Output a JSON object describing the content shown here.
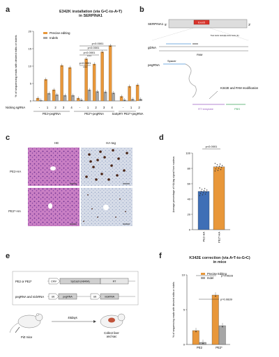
{
  "panels": {
    "a": "a",
    "b": "b",
    "c": "c",
    "d": "d",
    "e": "e",
    "f": "f"
  },
  "panel_a": {
    "title_line1": "E342K installation (via G•C-to-A•T)",
    "title_line2": "in SERPINA1",
    "nicking_label": "Nicking sgRNA",
    "nicking_values": [
      "-",
      "1",
      "2",
      "3",
      "4",
      "-",
      "1",
      "2",
      "3",
      "4",
      "-",
      "1",
      "2"
    ],
    "groups": [
      "PE2+pegRNA",
      "PE2*+pegRNA",
      "SaSpRY PE2*+pegRNA"
    ],
    "p1": "p<0.0001",
    "p2": "p<0.0001",
    "p3": "p<0.0001",
    "p4": "p<0.0001",
    "stars": "****"
  },
  "panel_b": {
    "gene": "SERPINA1",
    "exon": "Exon5",
    "five_prime": "5'",
    "three_prime": "3'",
    "mutation_label": "TGA GAG GAA(E) AAG GAG (K)",
    "gdna_label": "gDNA",
    "pegrna_label": "pegRNA",
    "spacer_label": "Spacer",
    "pam_label": "PAM",
    "rt_template_label": "RT template",
    "pbs_label": "PBS",
    "k342e_label": "K342E and PAM modification"
  },
  "panel_c": {
    "he_label": "HE",
    "ha_tag_label": "HA-tag",
    "row1_label": "PE2-HA",
    "row2_label": "PE2*-HA"
  },
  "panel_e": {
    "row1_label": "PE2 or PE2*",
    "row2_label": "pegRNA and nickRNA",
    "cmv": "CMV",
    "spcas9": "SpCas9 (H840A)",
    "rt": "RT",
    "u6a": "U6",
    "pegrna": "pegRNA",
    "u6b": "U6",
    "nickrna": "nickRNA",
    "mice_label": "PiZ mice",
    "days_label": "45days",
    "collect_label1": "Collect liver",
    "collect_label2": "and sac"
  },
  "chart_data": [
    {
      "id": "a",
      "type": "bar",
      "categories": [
        "-",
        "1",
        "2",
        "3",
        "4",
        "-",
        "1",
        "2",
        "3",
        "4",
        "-",
        "1",
        "2"
      ],
      "series": [
        {
          "name": "Precise editing",
          "values": [
            0.8,
            6.2,
            3.2,
            10.2,
            9.6,
            0.8,
            12.1,
            10.6,
            14.1,
            15.9,
            1.3,
            4.2,
            4.6
          ]
        },
        {
          "name": "Indels",
          "values": [
            0.2,
            2.2,
            1.8,
            1.6,
            1.6,
            0.3,
            3.2,
            2.7,
            2.6,
            2.3,
            0.3,
            0.5,
            0.5
          ]
        }
      ],
      "ylabel": "% of sequencing reads with desired edits or indels",
      "ylim": [
        0,
        20
      ],
      "yticks": [
        0,
        5,
        10,
        15,
        20
      ],
      "legend": "top-left",
      "colors": {
        "Precise editing": "#E8973A",
        "Indels": "#A6A6A6"
      }
    },
    {
      "id": "d",
      "type": "bar",
      "categories": [
        "PE2-HA",
        "PE2*-HA"
      ],
      "values": [
        50,
        82
      ],
      "ylabel": "Average percentage of HA-tag signal from nucleus",
      "ylim": [
        0,
        100
      ],
      "yticks": [
        0,
        20,
        40,
        60,
        80,
        100
      ],
      "annotation": "p<0.0001",
      "colors": {
        "PE2-HA": "#3F6FB6",
        "PE2*-HA": "#E8973A"
      }
    },
    {
      "id": "f",
      "type": "bar",
      "title_line1": "K342E correction (via A•T-to-G•C)",
      "title_line2": "in mice",
      "categories": [
        "PE2",
        "PE2*"
      ],
      "series": [
        {
          "name": "Precise Editing",
          "values": [
            2.0,
            7.1
          ]
        },
        {
          "name": "Indel",
          "values": [
            0.3,
            2.7
          ]
        }
      ],
      "ylabel": "% of sequencing reads with desired edits or indels",
      "ylim": [
        0,
        10
      ],
      "yticks": [
        0,
        5,
        10
      ],
      "legend": "top-left",
      "annotations": [
        "p=0.0628",
        "p=0.0839"
      ],
      "colors": {
        "Precise Editing": "#E8973A",
        "Indel": "#A6A6A6"
      }
    }
  ]
}
